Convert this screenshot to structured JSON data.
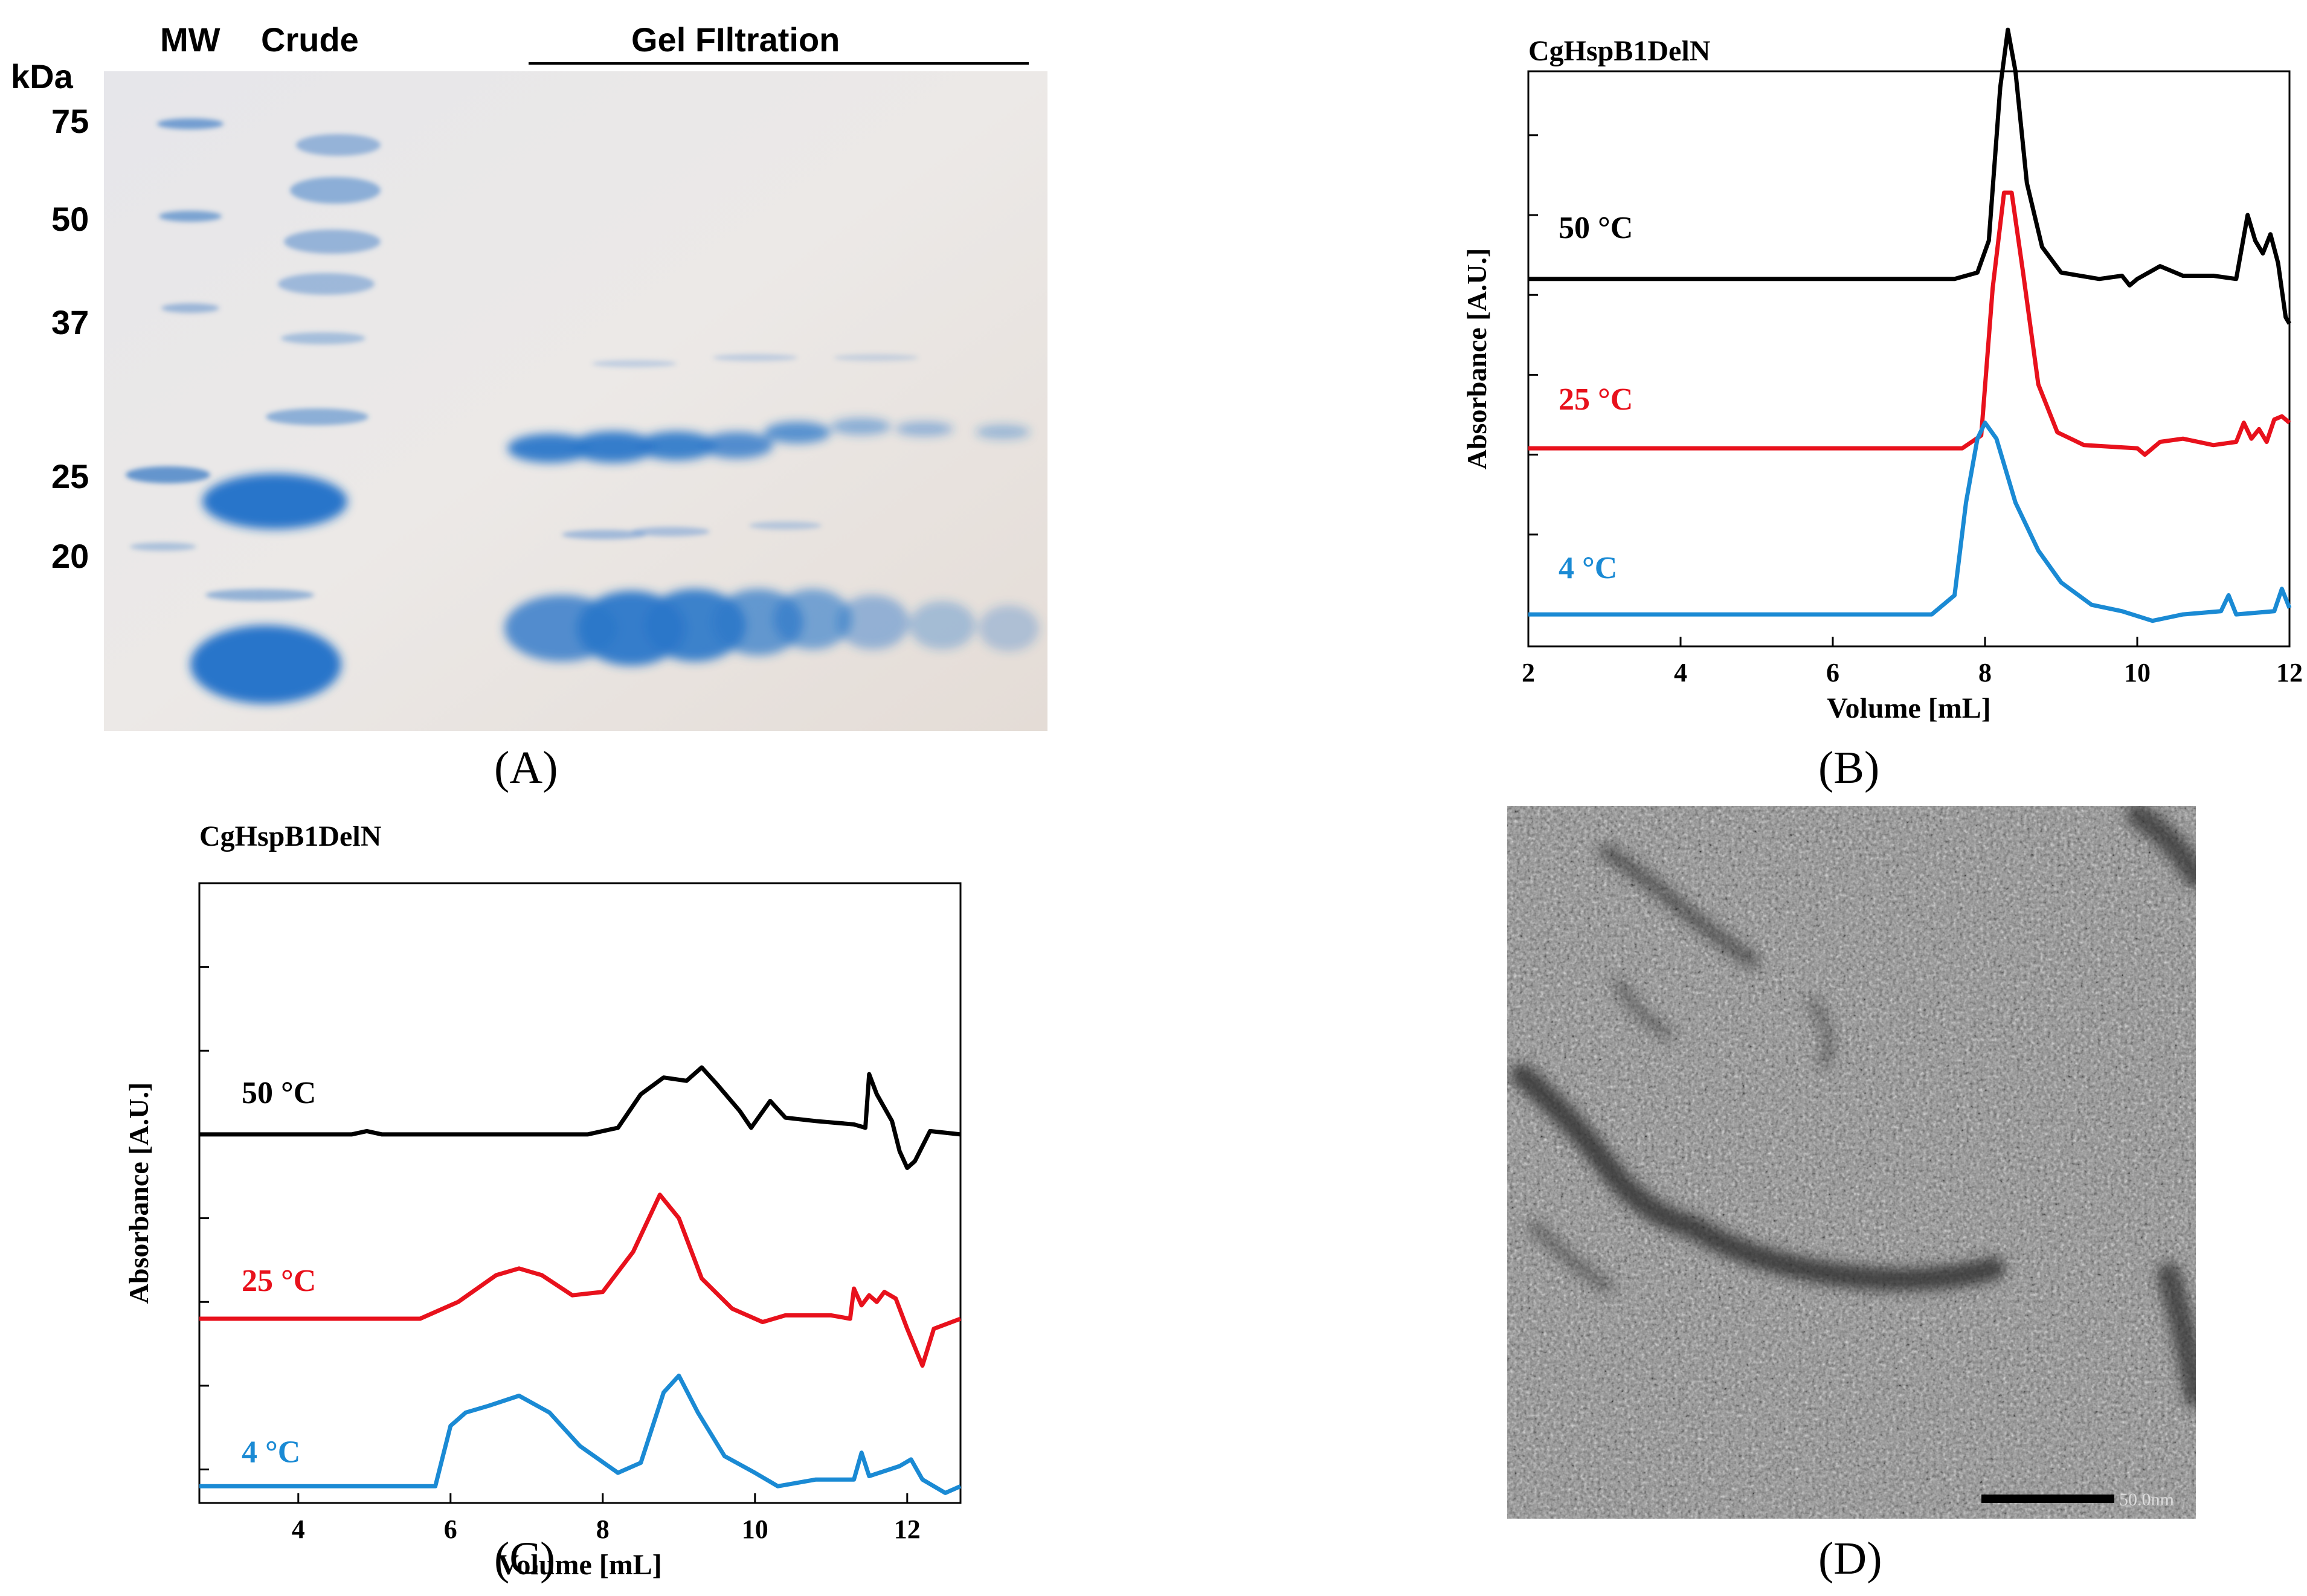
{
  "panel_a": {
    "label": "(A)",
    "lane_labels": [
      "MW",
      "Crude"
    ],
    "group_label": "Gel FIltration",
    "unit": "kDa",
    "mw_markers": [
      "75",
      "50",
      "37",
      "25",
      "20"
    ]
  },
  "panel_b": {
    "label": "(B)"
  },
  "panel_c": {
    "label": "(C)"
  },
  "panel_d": {
    "label": "(D)",
    "scale_bar_label": "50.0nm"
  },
  "chart_data": [
    {
      "id": "B",
      "type": "line",
      "title": "CgHspB1DelN",
      "xlabel": "Volume [mL]",
      "ylabel": "Absorbance [A.U.]",
      "xlim": [
        2,
        12
      ],
      "ylim": [
        0,
        1.8
      ],
      "xticks": [
        2,
        4,
        6,
        8,
        10,
        12
      ],
      "yticks": [
        0.1,
        0.35,
        0.6,
        0.85,
        1.1,
        1.35,
        1.6
      ],
      "series": [
        {
          "name": "50 °C",
          "color": "#000000",
          "offset": 1.15,
          "points": [
            [
              2,
              0
            ],
            [
              7.6,
              0
            ],
            [
              7.9,
              0.02
            ],
            [
              8.05,
              0.12
            ],
            [
              8.2,
              0.6
            ],
            [
              8.3,
              0.78
            ],
            [
              8.4,
              0.65
            ],
            [
              8.55,
              0.3
            ],
            [
              8.75,
              0.1
            ],
            [
              9.0,
              0.02
            ],
            [
              9.5,
              0
            ],
            [
              9.8,
              0.01
            ],
            [
              9.9,
              -0.02
            ],
            [
              10.0,
              0
            ],
            [
              10.3,
              0.04
            ],
            [
              10.6,
              0.01
            ],
            [
              11.0,
              0.01
            ],
            [
              11.3,
              0
            ],
            [
              11.45,
              0.2
            ],
            [
              11.55,
              0.12
            ],
            [
              11.65,
              0.08
            ],
            [
              11.75,
              0.14
            ],
            [
              11.85,
              0.05
            ],
            [
              11.95,
              -0.12
            ],
            [
              12,
              -0.14
            ]
          ]
        },
        {
          "name": "25 °C",
          "color": "#e8111c",
          "offset": 0.62,
          "points": [
            [
              2,
              0
            ],
            [
              7.7,
              0
            ],
            [
              7.95,
              0.04
            ],
            [
              8.1,
              0.5
            ],
            [
              8.25,
              0.8
            ],
            [
              8.35,
              0.8
            ],
            [
              8.5,
              0.55
            ],
            [
              8.7,
              0.2
            ],
            [
              8.95,
              0.05
            ],
            [
              9.3,
              0.01
            ],
            [
              10.0,
              0
            ],
            [
              10.1,
              -0.02
            ],
            [
              10.3,
              0.02
            ],
            [
              10.6,
              0.03
            ],
            [
              11.0,
              0.01
            ],
            [
              11.3,
              0.02
            ],
            [
              11.4,
              0.08
            ],
            [
              11.5,
              0.03
            ],
            [
              11.6,
              0.06
            ],
            [
              11.7,
              0.02
            ],
            [
              11.8,
              0.09
            ],
            [
              11.9,
              0.1
            ],
            [
              12,
              0.08
            ]
          ]
        },
        {
          "name": "4 °C",
          "color": "#1a8ad4",
          "offset": 0.1,
          "points": [
            [
              2,
              0
            ],
            [
              7.3,
              0
            ],
            [
              7.6,
              0.06
            ],
            [
              7.75,
              0.35
            ],
            [
              7.9,
              0.55
            ],
            [
              8.0,
              0.6
            ],
            [
              8.15,
              0.55
            ],
            [
              8.4,
              0.35
            ],
            [
              8.7,
              0.2
            ],
            [
              9.0,
              0.1
            ],
            [
              9.4,
              0.03
            ],
            [
              9.8,
              0.01
            ],
            [
              10.2,
              -0.02
            ],
            [
              10.6,
              0
            ],
            [
              11.1,
              0.01
            ],
            [
              11.2,
              0.06
            ],
            [
              11.3,
              0
            ],
            [
              11.8,
              0.01
            ],
            [
              11.9,
              0.08
            ],
            [
              12,
              0.02
            ]
          ]
        }
      ],
      "series_label_positions": "left of peaks"
    },
    {
      "id": "C",
      "type": "line",
      "title": "CgHspB1DelN",
      "xlabel": "Volume [mL]",
      "ylabel": "Absorbance [A.U.]",
      "xlim": [
        2.7,
        12.7
      ],
      "ylim": [
        0,
        1.85
      ],
      "xticks": [
        4,
        6,
        8,
        10,
        12
      ],
      "yticks": [
        0.1,
        0.35,
        0.6,
        0.85,
        1.1,
        1.35,
        1.6
      ],
      "series": [
        {
          "name": "50 °C",
          "color": "#000000",
          "offset": 1.1,
          "points": [
            [
              2.7,
              0
            ],
            [
              4.7,
              0
            ],
            [
              4.9,
              0.01
            ],
            [
              5.1,
              0
            ],
            [
              7.8,
              0
            ],
            [
              8.2,
              0.02
            ],
            [
              8.5,
              0.12
            ],
            [
              8.8,
              0.17
            ],
            [
              9.1,
              0.16
            ],
            [
              9.3,
              0.2
            ],
            [
              9.5,
              0.15
            ],
            [
              9.8,
              0.07
            ],
            [
              9.95,
              0.02
            ],
            [
              10.2,
              0.1
            ],
            [
              10.4,
              0.05
            ],
            [
              10.8,
              0.04
            ],
            [
              11.3,
              0.03
            ],
            [
              11.45,
              0.02
            ],
            [
              11.5,
              0.18
            ],
            [
              11.6,
              0.12
            ],
            [
              11.8,
              0.04
            ],
            [
              11.9,
              -0.05
            ],
            [
              12.0,
              -0.1
            ],
            [
              12.1,
              -0.08
            ],
            [
              12.3,
              0.01
            ],
            [
              12.7,
              0
            ]
          ]
        },
        {
          "name": "25 °C",
          "color": "#e8111c",
          "offset": 0.55,
          "points": [
            [
              2.7,
              0
            ],
            [
              5.6,
              0
            ],
            [
              6.1,
              0.05
            ],
            [
              6.6,
              0.13
            ],
            [
              6.9,
              0.15
            ],
            [
              7.2,
              0.13
            ],
            [
              7.6,
              0.07
            ],
            [
              8.0,
              0.08
            ],
            [
              8.4,
              0.2
            ],
            [
              8.75,
              0.37
            ],
            [
              9.0,
              0.3
            ],
            [
              9.3,
              0.12
            ],
            [
              9.7,
              0.03
            ],
            [
              10.1,
              -0.01
            ],
            [
              10.4,
              0.01
            ],
            [
              11.0,
              0.01
            ],
            [
              11.25,
              0.0
            ],
            [
              11.3,
              0.09
            ],
            [
              11.4,
              0.04
            ],
            [
              11.5,
              0.07
            ],
            [
              11.6,
              0.05
            ],
            [
              11.7,
              0.08
            ],
            [
              11.85,
              0.06
            ],
            [
              12.0,
              -0.03
            ],
            [
              12.2,
              -0.14
            ],
            [
              12.35,
              -0.03
            ],
            [
              12.7,
              0
            ]
          ]
        },
        {
          "name": "4 °C",
          "color": "#1a8ad4",
          "offset": 0.05,
          "points": [
            [
              2.7,
              0
            ],
            [
              5.8,
              0
            ],
            [
              6.0,
              0.18
            ],
            [
              6.2,
              0.22
            ],
            [
              6.5,
              0.24
            ],
            [
              6.9,
              0.27
            ],
            [
              7.3,
              0.22
            ],
            [
              7.7,
              0.12
            ],
            [
              8.2,
              0.04
            ],
            [
              8.5,
              0.07
            ],
            [
              8.8,
              0.28
            ],
            [
              9.0,
              0.33
            ],
            [
              9.25,
              0.22
            ],
            [
              9.6,
              0.09
            ],
            [
              10.0,
              0.04
            ],
            [
              10.3,
              0.0
            ],
            [
              10.8,
              0.02
            ],
            [
              11.3,
              0.02
            ],
            [
              11.4,
              0.1
            ],
            [
              11.5,
              0.03
            ],
            [
              11.9,
              0.06
            ],
            [
              12.05,
              0.08
            ],
            [
              12.2,
              0.02
            ],
            [
              12.5,
              -0.02
            ],
            [
              12.7,
              0
            ]
          ]
        }
      ],
      "series_label_positions": "left of peaks"
    }
  ]
}
